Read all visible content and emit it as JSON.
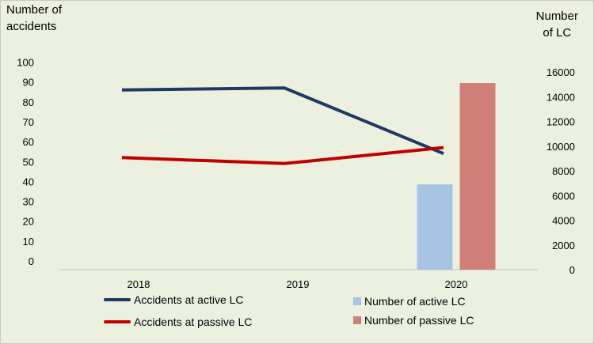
{
  "chart_data": {
    "type": "bar+line",
    "y_left_title": "Number of\naccidents",
    "y_right_title": "Number\nof LC",
    "categories": [
      "2018",
      "2019",
      "2020"
    ],
    "y_left": {
      "min": 0,
      "max": 100,
      "step": 10
    },
    "y_right": {
      "min": 0,
      "max": 16000,
      "step": 2000
    },
    "grid": false,
    "legend_position": "bottom",
    "line_series": [
      {
        "name": "Accidents at active LC",
        "color": "#1f3864",
        "axis": "left",
        "values": [
          86,
          87,
          54
        ]
      },
      {
        "name": "Accidents at passive LC",
        "color": "#c00000",
        "axis": "left",
        "values": [
          52,
          49,
          57
        ]
      }
    ],
    "bar_series": [
      {
        "name": "Number of active LC",
        "color": "#a7c4e2",
        "axis": "right",
        "values": [
          null,
          null,
          6900
        ]
      },
      {
        "name": "Number of passive LC",
        "color": "#d27e78",
        "axis": "right",
        "values": [
          null,
          null,
          15100
        ]
      }
    ]
  }
}
